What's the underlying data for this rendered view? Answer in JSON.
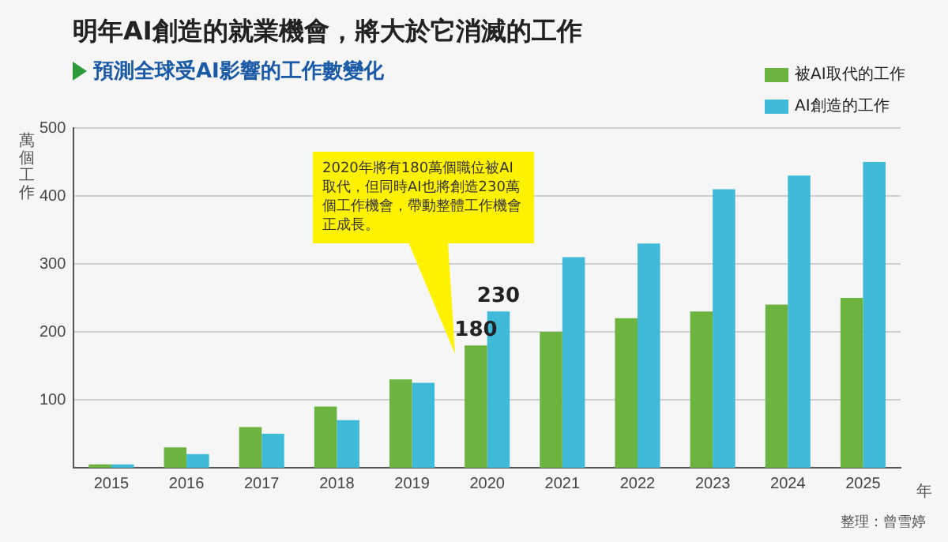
{
  "chart_data": {
    "type": "bar",
    "title": "明年AI創造的就業機會，將大於它消滅的工作",
    "subtitle": "預測全球受AI影響的工作數變化",
    "ylabel": "萬個工作",
    "xlabel": "年",
    "categories": [
      "2015",
      "2016",
      "2017",
      "2018",
      "2019",
      "2020",
      "2021",
      "2022",
      "2023",
      "2024",
      "2025"
    ],
    "series": [
      {
        "name": "被AI取代的工作",
        "color": "#6db33f",
        "values": [
          5,
          30,
          60,
          90,
          130,
          180,
          200,
          220,
          230,
          240,
          250
        ],
        "value_labels": [
          null,
          null,
          null,
          null,
          null,
          "180",
          null,
          null,
          null,
          null,
          null
        ]
      },
      {
        "name": "AI創造的工作",
        "color": "#3fbad8",
        "values": [
          5,
          20,
          50,
          70,
          125,
          230,
          310,
          330,
          410,
          430,
          450
        ],
        "value_labels": [
          null,
          null,
          null,
          null,
          null,
          "230",
          null,
          null,
          null,
          null,
          null
        ]
      }
    ],
    "ylim": [
      0,
      500
    ],
    "yticks": [
      100,
      200,
      300,
      400,
      500
    ],
    "grid": "y",
    "legend": "top right",
    "annotations": [
      "2020年將有180萬個職位被AI取代，但同時AI也將創造230萬個工作機會，帶動整體工作機會正成長。",
      "整理：曾雪婷"
    ]
  }
}
